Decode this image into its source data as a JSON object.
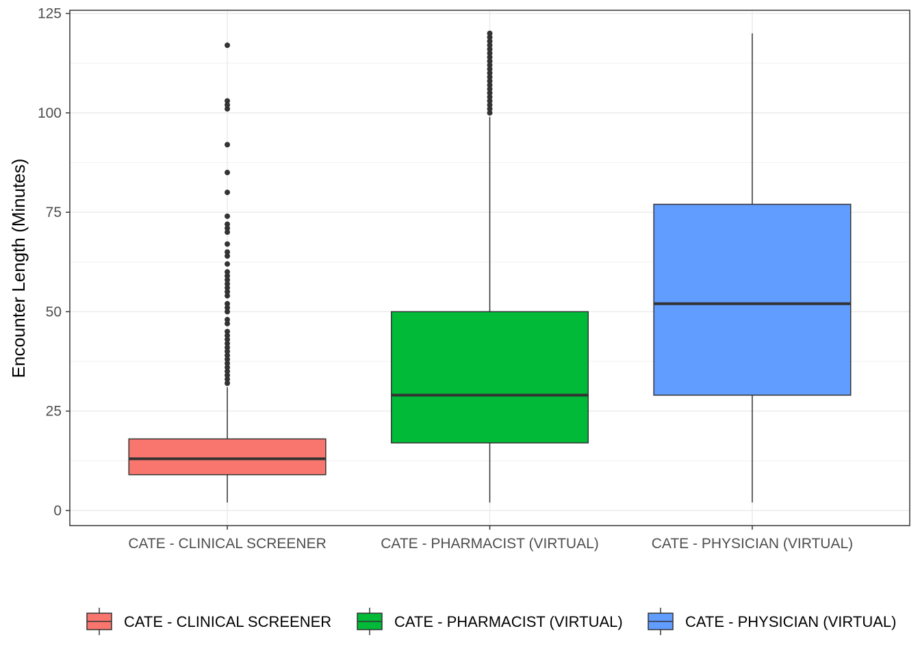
{
  "chart_data": {
    "type": "box",
    "ylabel": "Encounter Length (Minutes)",
    "xlabel": "",
    "ylim": [
      -3.8,
      125.8
    ],
    "yticks": [
      0,
      25,
      50,
      75,
      100,
      125
    ],
    "grid": true,
    "legend_position": "bottom",
    "categories": [
      "CATE - CLINICAL SCREENER",
      "CATE - PHARMACIST (VIRTUAL)",
      "CATE - PHYSICIAN (VIRTUAL)"
    ],
    "series": [
      {
        "name": "CATE - CLINICAL SCREENER",
        "color": "#F8766D",
        "whisker_low": 2,
        "q1": 9,
        "median": 13,
        "q3": 18,
        "whisker_high": 31,
        "outliers": [
          32,
          33,
          34,
          35,
          36,
          37,
          38,
          39,
          40,
          41,
          42,
          43,
          44,
          45,
          47,
          48,
          50,
          51,
          52,
          54,
          55,
          56,
          57,
          58,
          59,
          60,
          62,
          64,
          65,
          67,
          70,
          71,
          72,
          74,
          80,
          85,
          92,
          101,
          102,
          103,
          117
        ]
      },
      {
        "name": "CATE - PHARMACIST (VIRTUAL)",
        "color": "#00BA38",
        "whisker_low": 2,
        "q1": 17,
        "median": 29,
        "q3": 50,
        "whisker_high": 99,
        "outliers": [
          100,
          101,
          102,
          103,
          104,
          105,
          106,
          107,
          108,
          109,
          110,
          111,
          112,
          113,
          114,
          115,
          116,
          117,
          118,
          119,
          120
        ]
      },
      {
        "name": "CATE - PHYSICIAN (VIRTUAL)",
        "color": "#619CFF",
        "whisker_low": 2,
        "q1": 29,
        "median": 52,
        "q3": 77,
        "whisker_high": 120,
        "outliers": []
      }
    ]
  }
}
